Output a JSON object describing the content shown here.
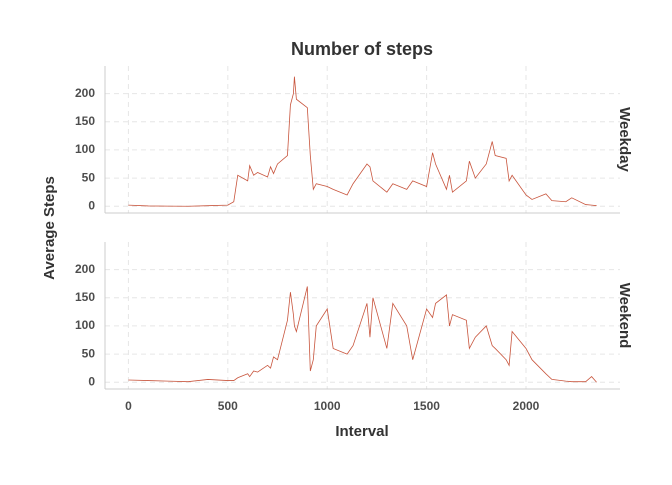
{
  "chart_data": {
    "type": "line",
    "title": "Number of steps",
    "x_label": "Interval",
    "y_label": "Average Steps",
    "x": [
      0,
      100,
      200,
      300,
      400,
      500,
      530,
      550,
      600,
      610,
      630,
      650,
      700,
      715,
      730,
      750,
      800,
      815,
      830,
      835,
      845,
      900,
      915,
      930,
      945,
      1000,
      1030,
      1100,
      1130,
      1200,
      1215,
      1230,
      1300,
      1330,
      1400,
      1430,
      1500,
      1530,
      1545,
      1600,
      1615,
      1630,
      1700,
      1715,
      1745,
      1800,
      1830,
      1845,
      1900,
      1915,
      1930,
      2000,
      2030,
      2100,
      2130,
      2200,
      2230,
      2300,
      2330,
      2355
    ],
    "series": [
      {
        "name": "Weekday",
        "color": "#c8553d",
        "values": [
          2,
          0.5,
          0.2,
          0,
          1,
          2,
          8,
          55,
          45,
          72,
          55,
          60,
          52,
          70,
          58,
          75,
          90,
          180,
          200,
          230,
          190,
          175,
          90,
          30,
          40,
          35,
          30,
          20,
          40,
          75,
          70,
          45,
          25,
          40,
          30,
          45,
          35,
          95,
          75,
          30,
          55,
          25,
          45,
          80,
          50,
          75,
          115,
          90,
          85,
          45,
          55,
          20,
          12,
          22,
          10,
          8,
          15,
          3,
          2,
          1
        ]
      },
      {
        "name": "Weekend",
        "color": "#c8553d",
        "values": [
          4,
          3,
          2,
          1,
          5,
          3,
          3,
          8,
          15,
          10,
          20,
          18,
          30,
          25,
          45,
          40,
          110,
          160,
          120,
          100,
          90,
          170,
          20,
          40,
          100,
          130,
          60,
          50,
          65,
          140,
          80,
          150,
          60,
          140,
          100,
          40,
          130,
          115,
          140,
          155,
          100,
          120,
          110,
          60,
          80,
          100,
          65,
          60,
          40,
          30,
          90,
          60,
          40,
          15,
          5,
          2,
          1,
          1,
          10,
          0
        ]
      }
    ],
    "xlim": [
      -117.75,
      2472.75
    ],
    "xticks": [
      0,
      500,
      1000,
      1500,
      2000
    ],
    "ylim": [
      -12,
      249
    ],
    "yticks": [
      0,
      50,
      100,
      150,
      200
    ],
    "grid": true
  }
}
